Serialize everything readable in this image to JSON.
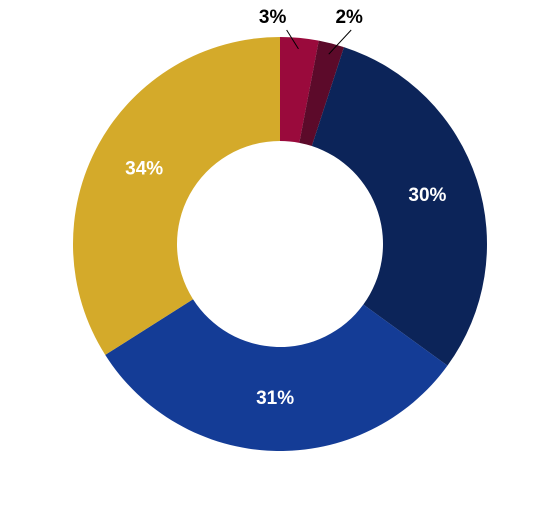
{
  "chart_data": {
    "type": "donut",
    "values": [
      3,
      2,
      30,
      31,
      34
    ],
    "value_labels": [
      "3%",
      "2%",
      "30%",
      "31%",
      "34%"
    ],
    "colors": [
      "#9a0a3c",
      "#5c0a2a",
      "#0c2459",
      "#143c96",
      "#d4aa2a"
    ]
  }
}
